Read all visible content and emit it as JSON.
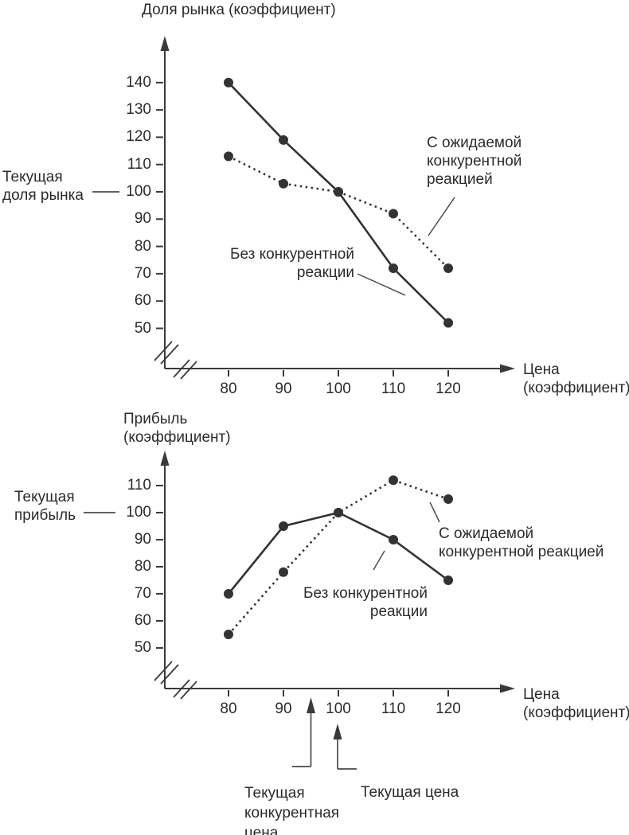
{
  "page": {
    "background": "#ffffff",
    "ink": "#333333",
    "text_color": "#2b2b2b"
  },
  "chart_data": [
    {
      "type": "line",
      "title": "Доля рынка (коэффициент)",
      "xlabel": "Цена (коэффициент)",
      "ylabel": "Доля рынка (коэффициент)",
      "x": [
        80,
        90,
        100,
        110,
        120
      ],
      "x_ticks": [
        80,
        90,
        100,
        110,
        120
      ],
      "y_ticks": [
        140,
        130,
        120,
        110,
        100,
        90,
        80,
        70,
        60,
        50
      ],
      "xlim": [
        75,
        126
      ],
      "ylim": [
        45,
        145
      ],
      "axis_breaks": true,
      "grid": false,
      "legend_position": "inline-annotations",
      "series": [
        {
          "name": "Без конкурентной реакции",
          "style": "solid",
          "values": [
            140,
            119,
            100,
            72,
            52
          ]
        },
        {
          "name": "С ожидаемой конкурентной реакцией",
          "style": "dotted",
          "values": [
            113,
            103,
            100,
            92,
            72
          ]
        }
      ],
      "current_marker": {
        "label": "Текущая доля рынка",
        "value": 100
      }
    },
    {
      "type": "line",
      "title": "Прибыль (коэффициент)",
      "xlabel": "Цена (коэффициент)",
      "ylabel": "Прибыль (коэффициент)",
      "x": [
        80,
        90,
        100,
        110,
        120
      ],
      "x_ticks": [
        80,
        90,
        100,
        110,
        120
      ],
      "y_ticks": [
        110,
        100,
        90,
        80,
        70,
        60,
        50
      ],
      "xlim": [
        75,
        126
      ],
      "ylim": [
        48,
        118
      ],
      "axis_breaks": true,
      "grid": false,
      "legend_position": "inline-annotations",
      "series": [
        {
          "name": "Без конкурентной реакции",
          "style": "solid",
          "values": [
            70,
            95,
            100,
            90,
            75
          ]
        },
        {
          "name": "С ожидаемой конкурентной реакцией",
          "style": "dotted",
          "values": [
            55,
            78,
            100,
            112,
            105
          ]
        }
      ],
      "current_marker": {
        "label": "Текущая прибыль",
        "value": 100
      },
      "price_markers": [
        {
          "label": "Текущая конкурентная цена",
          "value": 95
        },
        {
          "label": "Текущая цена",
          "value": 100
        }
      ]
    }
  ],
  "labels": {
    "chart1_title": "Доля рынка (коэффициент)",
    "chart1_current": "Текущая\nдоля рынка",
    "chart1_series_solid": "Без конкурентной\nреакции",
    "chart1_series_dotted": "С ожидаемой\nконкурентной\nреакцией",
    "chart1_xlabel": "Цена\n(коэффициент)",
    "chart2_title": "Прибыль\n(коэффициент)",
    "chart2_current": "Текущая\nприбыль",
    "chart2_series_solid": "Без конкурентной\nреакции",
    "chart2_series_dotted": "С ожидаемой\nконкурентной реакцией",
    "chart2_xlabel": "Цена\n(коэффициент)",
    "chart2_marker_competitive": "Текущая\nконкурентная\nцена",
    "chart2_marker_current": "Текущая цена"
  }
}
